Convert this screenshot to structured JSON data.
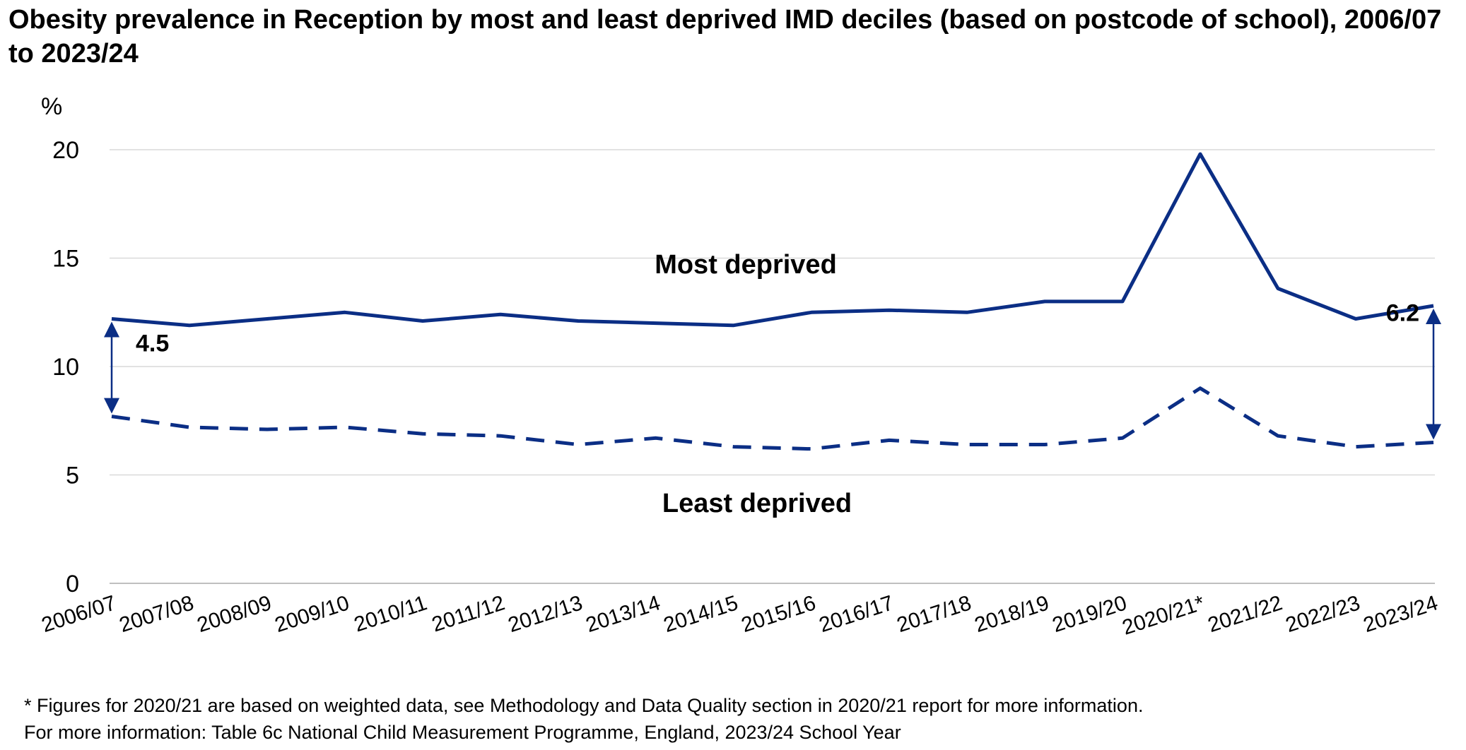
{
  "title": "Obesity prevalence in Reception by most and least deprived IMD deciles (based on postcode of school), 2006/07 to 2023/24",
  "chart_data": {
    "type": "line",
    "title": "Obesity prevalence in Reception by most and least deprived IMD deciles (based on postcode of school), 2006/07 to 2023/24",
    "ylabel": "%",
    "xlabel": "",
    "ylim": [
      0,
      20
    ],
    "yticks": [
      0,
      5,
      10,
      15,
      20
    ],
    "grid": true,
    "categories": [
      "2006/07",
      "2007/08",
      "2008/09",
      "2009/10",
      "2010/11",
      "2011/12",
      "2012/13",
      "2013/14",
      "2014/15",
      "2015/16",
      "2016/17",
      "2017/18",
      "2018/19",
      "2019/20",
      "2020/21*",
      "2021/22",
      "2022/23",
      "2023/24"
    ],
    "series": [
      {
        "name": "Most deprived",
        "style": "solid",
        "color": "#0b2e85",
        "values": [
          12.2,
          11.9,
          12.2,
          12.5,
          12.1,
          12.4,
          12.1,
          12.0,
          11.9,
          12.5,
          12.6,
          12.5,
          13.0,
          13.0,
          19.8,
          13.6,
          12.2,
          12.8
        ]
      },
      {
        "name": "Least deprived",
        "style": "dashed",
        "color": "#0b2e85",
        "values": [
          7.7,
          7.2,
          7.1,
          7.2,
          6.9,
          6.8,
          6.4,
          6.7,
          6.3,
          6.2,
          6.6,
          6.4,
          6.4,
          6.7,
          9.0,
          6.8,
          6.3,
          6.5
        ]
      }
    ],
    "annotations": [
      {
        "text": "4.5",
        "category": "2006/07",
        "from": 7.7,
        "to": 12.2
      },
      {
        "text": "6.2",
        "category": "2023/24",
        "from": 6.5,
        "to": 12.8
      }
    ]
  },
  "footnotes": [
    "* Figures for 2020/21 are based on weighted data, see Methodology and Data Quality section in 2020/21 report for more information.",
    "For more information: Table 6c National Child Measurement Programme, England, 2023/24 School Year"
  ],
  "colors": {
    "line": "#0b2e85",
    "grid": "#d9d9d9",
    "axis": "#bfbfbf"
  }
}
